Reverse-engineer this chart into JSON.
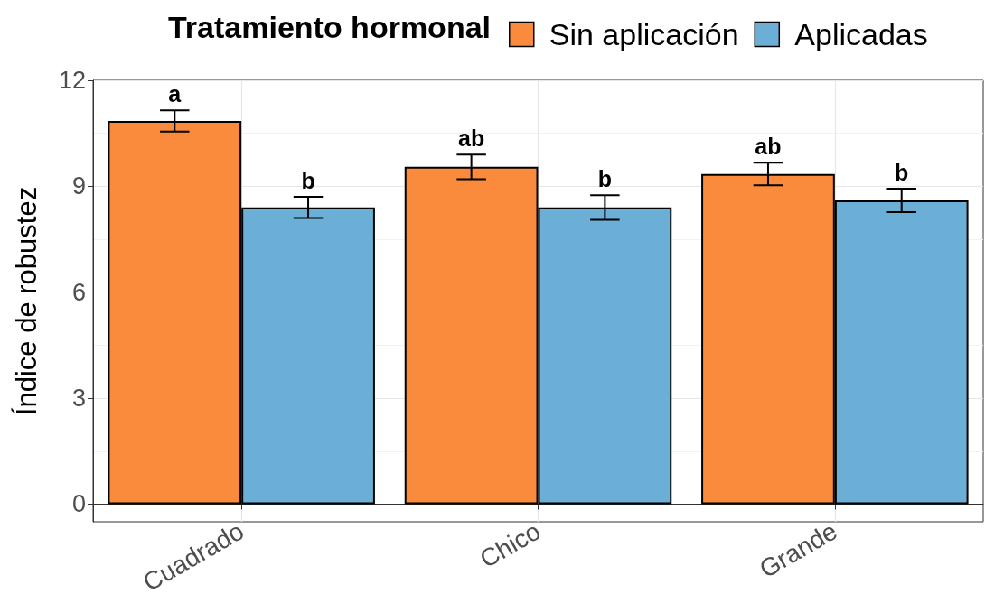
{
  "chart_data": {
    "type": "bar",
    "legend_title": "Tratamiento hormonal",
    "ylabel": "Índice de robustez",
    "categories": [
      "Cuadrado",
      "Chico",
      "Grande"
    ],
    "series": [
      {
        "name": "Sin aplicación",
        "color": "#fb8b3c",
        "values": [
          10.85,
          9.55,
          9.35
        ],
        "errors": [
          0.3,
          0.35,
          0.32
        ],
        "value_labels": [
          "a",
          "ab",
          "ab"
        ]
      },
      {
        "name": "Aplicadas",
        "color": "#6baed6",
        "values": [
          8.4,
          8.4,
          8.6
        ],
        "errors": [
          0.3,
          0.35,
          0.33
        ],
        "value_labels": [
          "b",
          "b",
          "b"
        ]
      }
    ],
    "ylim": [
      -0.5,
      12
    ],
    "yticks": [
      0,
      3,
      6,
      9,
      12
    ],
    "grid": true,
    "legend": "top"
  }
}
